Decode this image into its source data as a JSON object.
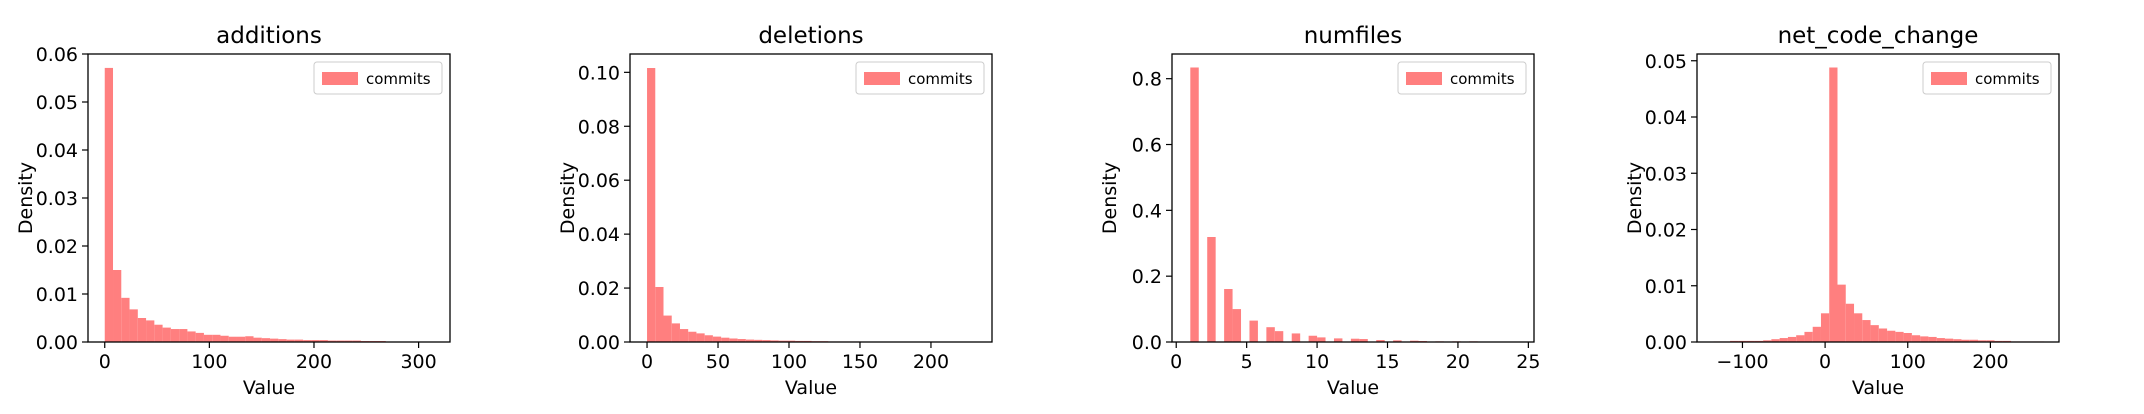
{
  "figure": {
    "background": "#ffffff"
  },
  "colors": {
    "bar": "#ff7f7f",
    "axis": "#000000",
    "legend_border": "#cccccc"
  },
  "chart_data": [
    {
      "type": "bar",
      "title": "additions",
      "xlabel": "Value",
      "ylabel": "Density",
      "xlim": [
        -16,
        330
      ],
      "ylim": [
        0,
        0.06
      ],
      "xticks": [
        0,
        100,
        200,
        300
      ],
      "xtick_labels": [
        "0",
        "100",
        "200",
        "300"
      ],
      "yticks": [
        0,
        0.01,
        0.02,
        0.03,
        0.04,
        0.05,
        0.06
      ],
      "ytick_labels": [
        "0.00",
        "0.01",
        "0.02",
        "0.03",
        "0.04",
        "0.05",
        "0.06"
      ],
      "legend": {
        "label": "commits",
        "placement": "top-right"
      },
      "bin_edges": [
        0,
        7.9,
        15.8,
        23.7,
        31.6,
        39.5,
        47.4,
        55.3,
        63.2,
        71.1,
        79,
        86.9,
        94.8,
        102.7,
        110.6,
        118.5,
        126.4,
        134.3,
        142.2,
        150.1,
        158,
        165.9,
        173.8,
        181.7,
        189.6,
        197.5,
        205.4,
        213.3,
        221.2,
        229.1,
        237,
        244.9,
        252.8,
        260.7,
        268.6,
        276.5,
        284.4,
        292.3,
        300.2,
        308.1,
        316
      ],
      "values": [
        0.0571,
        0.015,
        0.0092,
        0.0068,
        0.005,
        0.0045,
        0.0036,
        0.003,
        0.0027,
        0.0027,
        0.0022,
        0.0019,
        0.0015,
        0.0015,
        0.0013,
        0.0011,
        0.0011,
        0.0012,
        0.0009,
        0.0008,
        0.0007,
        0.0006,
        0.0005,
        0.0005,
        0.0004,
        0.0004,
        0.0004,
        0.0003,
        0.0003,
        0.0003,
        0.0003,
        0.0002,
        0.0002,
        0.0002,
        0.0001,
        0.0001,
        0.0001,
        0.0001,
        0.0001,
        0.0001
      ]
    },
    {
      "type": "bar",
      "title": "deletions",
      "xlabel": "Value",
      "ylabel": "Density",
      "xlim": [
        -12,
        243
      ],
      "ylim": [
        0,
        0.1068
      ],
      "xticks": [
        0,
        50,
        100,
        150,
        200
      ],
      "xtick_labels": [
        "0",
        "50",
        "100",
        "150",
        "200"
      ],
      "yticks": [
        0,
        0.02,
        0.04,
        0.06,
        0.08,
        0.1
      ],
      "ytick_labels": [
        "0.00",
        "0.02",
        "0.04",
        "0.06",
        "0.08",
        "0.10"
      ],
      "legend": {
        "label": "commits",
        "placement": "top-right"
      },
      "bin_edges": [
        0,
        5.8,
        11.6,
        17.4,
        23.2,
        29,
        34.8,
        40.6,
        46.4,
        52.2,
        58,
        63.8,
        69.6,
        75.4,
        81.2,
        87,
        92.8,
        98.6,
        104.4,
        110.2,
        116,
        121.8,
        127.6,
        133.4,
        139.2,
        145,
        150.8,
        156.6,
        162.4,
        168.2,
        174,
        179.8,
        185.6,
        191.4,
        197.2,
        203,
        208.8,
        214.6,
        220.4,
        226.2,
        232
      ],
      "values": [
        0.1016,
        0.0204,
        0.0098,
        0.0069,
        0.0048,
        0.0038,
        0.0032,
        0.0025,
        0.002,
        0.0016,
        0.0013,
        0.0011,
        0.0009,
        0.0008,
        0.0007,
        0.0006,
        0.0005,
        0.0005,
        0.0004,
        0.0004,
        0.0003,
        0.0003,
        0.0002,
        0.0002,
        0.0002,
        0.0002,
        0.0001,
        0.0001,
        0.0001,
        0.0001,
        0.0001,
        0.0001,
        0.0001,
        0.0001,
        0.0001,
        0.0001,
        0.0001,
        0.0001,
        0.0001,
        0.0001
      ]
    },
    {
      "type": "bar",
      "title": "numfiles",
      "xlabel": "Value",
      "ylabel": "Density",
      "xlim": [
        -0.3,
        25.4
      ],
      "ylim": [
        0,
        0.875
      ],
      "xticks": [
        0,
        5,
        10,
        15,
        20,
        25
      ],
      "xtick_labels": [
        "0",
        "5",
        "10",
        "15",
        "20",
        "25"
      ],
      "yticks": [
        0,
        0.2,
        0.4,
        0.6,
        0.8
      ],
      "ytick_labels": [
        "0.0",
        "0.2",
        "0.4",
        "0.6",
        "0.8"
      ],
      "legend": {
        "label": "commits",
        "placement": "top-right"
      },
      "bin_edges": [
        1,
        1.6,
        2.2,
        2.8,
        3.4,
        4,
        4.6,
        5.2,
        5.8,
        6.4,
        7,
        7.6,
        8.2,
        8.8,
        9.4,
        10,
        10.6,
        11.2,
        11.8,
        12.4,
        13,
        13.6,
        14.2,
        14.8,
        15.4,
        16,
        16.6,
        17.2,
        17.8,
        18.4,
        19,
        19.6,
        20.2,
        20.8,
        21.4,
        22,
        22.6,
        23.2,
        23.8,
        24.4,
        25
      ],
      "values": [
        0.834,
        0,
        0.319,
        0,
        0.161,
        0.1,
        0,
        0.065,
        0,
        0.045,
        0.033,
        0,
        0.026,
        0,
        0.019,
        0.014,
        0,
        0.011,
        0,
        0.01,
        0.009,
        0,
        0.006,
        0,
        0.005,
        0,
        0.004,
        0.003,
        0,
        0.002,
        0,
        0.002,
        0,
        0.002,
        0,
        0.001,
        0.001,
        0,
        0.001,
        0
      ]
    },
    {
      "type": "bar",
      "title": "net_code_change",
      "xlabel": "Value",
      "ylabel": "Density",
      "xlim": [
        -155,
        283
      ],
      "ylim": [
        0,
        0.0512
      ],
      "xticks": [
        -100,
        0,
        100,
        200
      ],
      "xtick_labels": [
        "−100",
        "0",
        "100",
        "200"
      ],
      "yticks": [
        0,
        0.01,
        0.02,
        0.03,
        0.04,
        0.05
      ],
      "ytick_labels": [
        "0.00",
        "0.01",
        "0.02",
        "0.03",
        "0.04",
        "0.05"
      ],
      "legend": {
        "label": "commits",
        "placement": "top-right"
      },
      "bin_edges": [
        -135,
        -125,
        -115,
        -105,
        -95,
        -85,
        -75,
        -65,
        -55,
        -45,
        -35,
        -25,
        -15,
        -5,
        5,
        15,
        25,
        35,
        45,
        55,
        65,
        75,
        85,
        95,
        105,
        115,
        125,
        135,
        145,
        155,
        165,
        175,
        185,
        195,
        205,
        215,
        225,
        235,
        245,
        255,
        265
      ],
      "values": [
        0.0001,
        0.0001,
        0.0002,
        0.0002,
        0.0002,
        0.0002,
        0.0003,
        0.0005,
        0.0007,
        0.0009,
        0.0012,
        0.0018,
        0.0027,
        0.0051,
        0.0488,
        0.0102,
        0.0068,
        0.0051,
        0.0039,
        0.003,
        0.0024,
        0.002,
        0.0018,
        0.0016,
        0.0012,
        0.001,
        0.0009,
        0.0007,
        0.0006,
        0.0005,
        0.0004,
        0.0004,
        0.0003,
        0.0003,
        0.0002,
        0.0002,
        0.0001,
        0.0001,
        0.0001,
        0.0001
      ]
    }
  ]
}
